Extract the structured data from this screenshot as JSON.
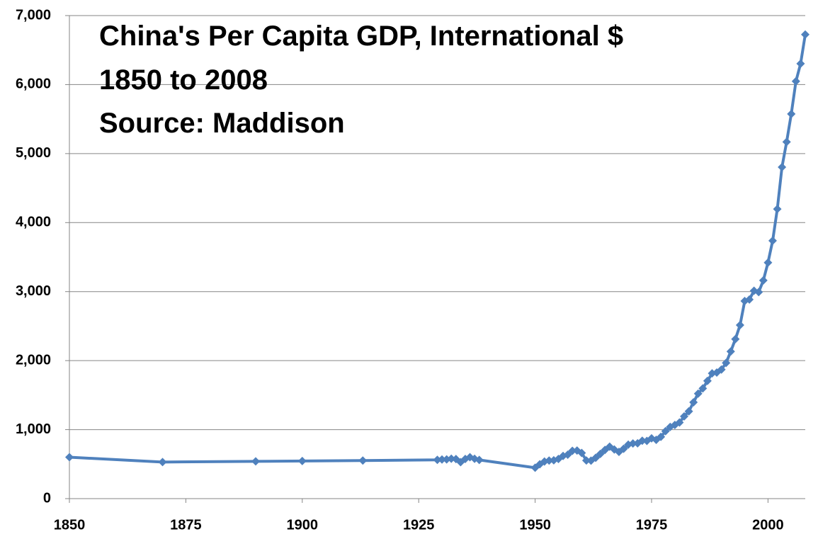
{
  "chart_data": {
    "type": "line",
    "title": "China's Per Capita GDP, International $",
    "subtitle": "1850 to 2008",
    "source": "Source: Maddison",
    "color": "#4f81bd",
    "grid": true,
    "x": [
      1850,
      1870,
      1890,
      1900,
      1913,
      1929,
      1930,
      1931,
      1932,
      1933,
      1934,
      1935,
      1936,
      1937,
      1938,
      1950,
      1951,
      1952,
      1953,
      1954,
      1955,
      1956,
      1957,
      1958,
      1959,
      1960,
      1961,
      1962,
      1963,
      1964,
      1965,
      1966,
      1967,
      1968,
      1969,
      1970,
      1971,
      1972,
      1973,
      1974,
      1975,
      1976,
      1977,
      1978,
      1979,
      1980,
      1981,
      1982,
      1983,
      1984,
      1985,
      1986,
      1987,
      1988,
      1989,
      1990,
      1991,
      1992,
      1993,
      1994,
      1995,
      1996,
      1997,
      1998,
      1999,
      2000,
      2001,
      2002,
      2003,
      2004,
      2005,
      2006,
      2007,
      2008
    ],
    "values": [
      600,
      530,
      540,
      545,
      552,
      562,
      567,
      569,
      578,
      574,
      528,
      575,
      600,
      577,
      561,
      448,
      498,
      538,
      552,
      556,
      575,
      619,
      637,
      693,
      697,
      662,
      553,
      550,
      592,
      648,
      706,
      753,
      712,
      678,
      722,
      783,
      799,
      802,
      839,
      836,
      874,
      852,
      895,
      978,
      1039,
      1067,
      1103,
      1192,
      1265,
      1396,
      1522,
      1597,
      1706,
      1816,
      1827,
      1871,
      1967,
      2132,
      2312,
      2515,
      2863,
      2885,
      3013,
      2993,
      3162,
      3421,
      3737,
      4197,
      4803,
      5169,
      5575,
      6048,
      6303,
      6725
    ],
    "xlim": [
      1850,
      2008
    ],
    "xticks": [
      1850,
      1875,
      1900,
      1925,
      1950,
      1975,
      2000
    ],
    "ylim": [
      0,
      7000
    ],
    "yticks": [
      0,
      {
        "value": 1000,
        "label": "1,000"
      },
      {
        "value": 2000,
        "label": "2,000"
      },
      {
        "value": 3000,
        "label": "3,000"
      },
      {
        "value": 4000,
        "label": "4,000"
      },
      {
        "value": 5000,
        "label": "5,000"
      },
      {
        "value": 6000,
        "label": "6,000"
      },
      {
        "value": 7000,
        "label": "7,000"
      }
    ]
  }
}
